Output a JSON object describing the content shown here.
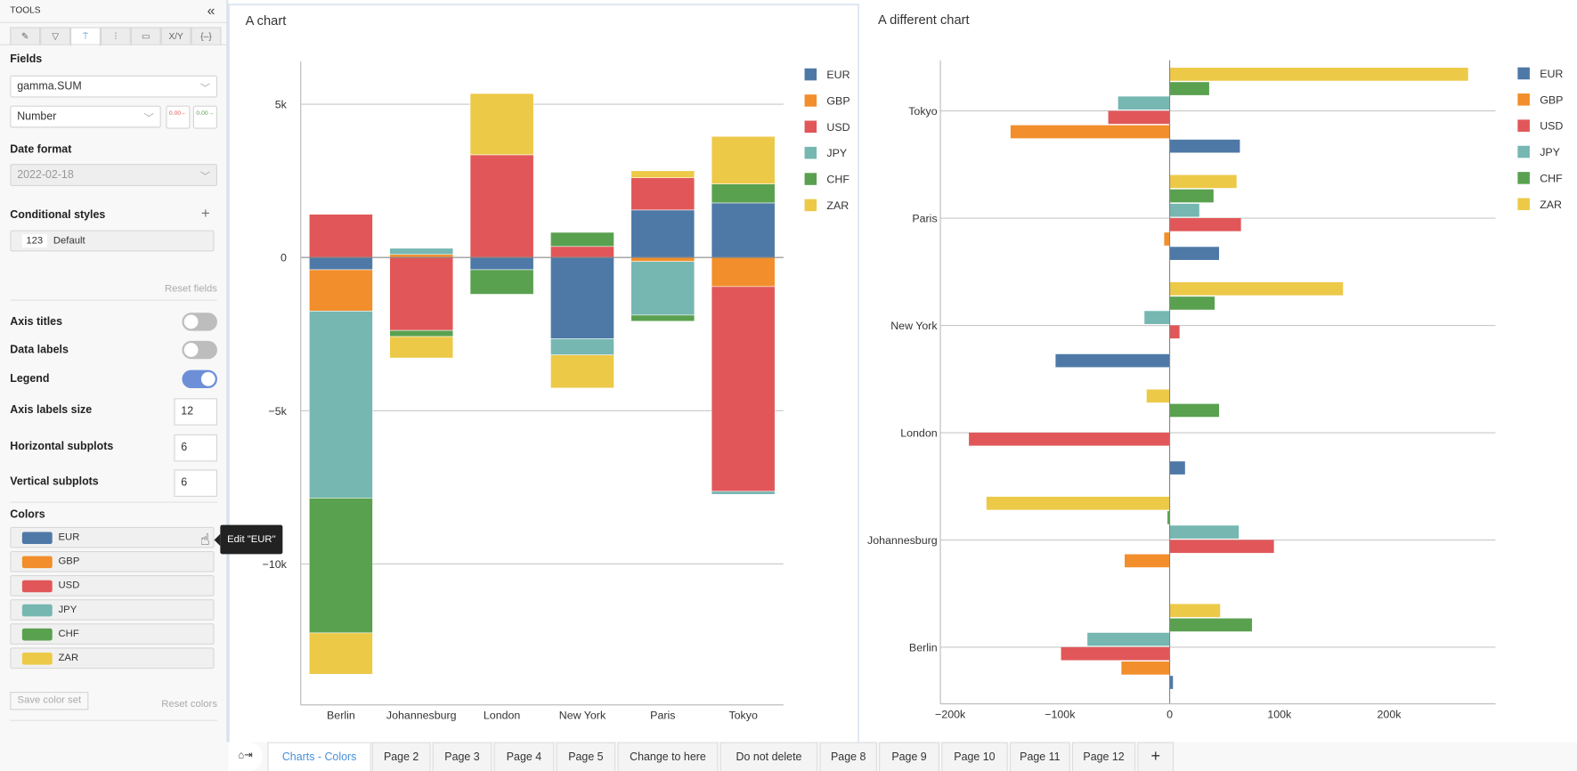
{
  "sidebar": {
    "title": "TOOLS",
    "collapse_icon": "double-chevron-left",
    "tool_tabs": [
      {
        "icon": "pencil-icon",
        "glyph": "✎"
      },
      {
        "icon": "filter-icon",
        "glyph": "▽"
      },
      {
        "icon": "paint-roller-icon",
        "glyph": "⍑",
        "active": true
      },
      {
        "icon": "sliders-icon",
        "glyph": "⫶"
      },
      {
        "icon": "terminal-icon",
        "glyph": "▭"
      },
      {
        "icon": "xy-icon",
        "glyph": "X/Y"
      },
      {
        "icon": "braces-icon",
        "glyph": "{–}"
      }
    ],
    "fields_label": "Fields",
    "field_value": "gamma.SUM",
    "format_value": "Number",
    "decimal_decrease": "0.00←",
    "decimal_increase": "0.00→",
    "date_format_label": "Date format",
    "date_format_value": "2022-02-18",
    "conditional_styles_label": "Conditional styles",
    "conditional_add": "+",
    "conditional_badge": "123",
    "conditional_default": "Default",
    "reset_fields": "Reset fields",
    "axis_titles": {
      "label": "Axis titles",
      "on": false
    },
    "data_labels": {
      "label": "Data labels",
      "on": false
    },
    "legend": {
      "label": "Legend",
      "on": true
    },
    "axis_labels_size": {
      "label": "Axis labels size",
      "value": "12"
    },
    "horizontal_subplots": {
      "label": "Horizontal subplots",
      "value": "6"
    },
    "vertical_subplots": {
      "label": "Vertical subplots",
      "value": "6"
    },
    "colors_label": "Colors",
    "colors": [
      {
        "name": "EUR",
        "color": "#4e79a7"
      },
      {
        "name": "GBP",
        "color": "#f28e2b"
      },
      {
        "name": "USD",
        "color": "#e15759"
      },
      {
        "name": "JPY",
        "color": "#76b7b2"
      },
      {
        "name": "CHF",
        "color": "#59a14f"
      },
      {
        "name": "ZAR",
        "color": "#edc948"
      }
    ],
    "save_color_set": "Save color set",
    "reset_colors": "Reset colors",
    "tooltip": "Edit \"EUR\""
  },
  "chart_data": [
    {
      "type": "bar",
      "stacked": true,
      "orientation": "vertical",
      "title": "A chart",
      "categories": [
        "Berlin",
        "Johannesburg",
        "London",
        "New York",
        "Paris",
        "Tokyo"
      ],
      "series": [
        {
          "name": "EUR",
          "values": [
            -400,
            0,
            -400,
            -2650,
            1550,
            1780
          ]
        },
        {
          "name": "GBP",
          "values": [
            -1350,
            100,
            0,
            0,
            -130,
            -950
          ]
        },
        {
          "name": "USD",
          "values": [
            1410,
            -2380,
            3350,
            360,
            1050,
            -6680
          ]
        },
        {
          "name": "JPY",
          "values": [
            -6100,
            200,
            0,
            -530,
            -1750,
            -100
          ]
        },
        {
          "name": "CHF",
          "values": [
            -4400,
            -200,
            -800,
            460,
            -200,
            620
          ]
        },
        {
          "name": "ZAR",
          "values": [
            -1350,
            -700,
            2000,
            -1080,
            230,
            1550
          ]
        }
      ],
      "yticks": [
        {
          "v": 5000,
          "label": "5k"
        },
        {
          "v": 0,
          "label": "0"
        },
        {
          "v": -5000,
          "label": "−5k"
        },
        {
          "v": -10000,
          "label": "−10k"
        }
      ],
      "ylim": [
        -14600,
        6400
      ],
      "grid": true,
      "legend": "right"
    },
    {
      "type": "bar",
      "stacked": false,
      "orientation": "horizontal",
      "title": "A different chart",
      "categories": [
        "Tokyo",
        "Paris",
        "New York",
        "London",
        "Johannesburg",
        "Berlin"
      ],
      "series": [
        {
          "name": "EUR",
          "values": [
            64000,
            45000,
            -104000,
            14000,
            0,
            3000
          ]
        },
        {
          "name": "GBP",
          "values": [
            -145000,
            -5000,
            0,
            0,
            -41000,
            -44000
          ]
        },
        {
          "name": "USD",
          "values": [
            -56000,
            65000,
            9000,
            -183000,
            95000,
            -99000
          ]
        },
        {
          "name": "JPY",
          "values": [
            -47000,
            27000,
            -23000,
            0,
            63000,
            -75000
          ]
        },
        {
          "name": "CHF",
          "values": [
            36000,
            40000,
            41000,
            45000,
            -2000,
            75000
          ]
        },
        {
          "name": "ZAR",
          "values": [
            272000,
            61000,
            158000,
            -21000,
            -167000,
            46000
          ]
        }
      ],
      "xticks": [
        {
          "v": -200000,
          "label": "−200k"
        },
        {
          "v": -100000,
          "label": "−100k"
        },
        {
          "v": 0,
          "label": "0"
        },
        {
          "v": 100000,
          "label": "100k"
        },
        {
          "v": 200000,
          "label": "200k"
        }
      ],
      "xlim": [
        -209000,
        297000
      ],
      "grid": true,
      "legend": "right"
    }
  ],
  "tabs": {
    "home_icon": "home-collapse-icon",
    "home_glyph": "⌂⇥",
    "items": [
      "Charts - Colors",
      "Page 2",
      "Page 3",
      "Page 4",
      "Page 5",
      "Change to here",
      "Do not delete",
      "Page 8",
      "Page 9",
      "Page 10",
      "Page 11",
      "Page 12"
    ],
    "active": "Charts - Colors",
    "add": "+"
  }
}
